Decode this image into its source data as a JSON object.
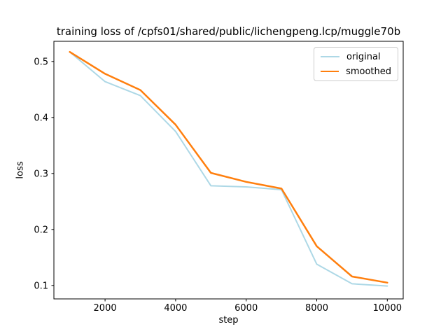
{
  "chart_data": {
    "type": "line",
    "title": "training loss of /cpfs01/shared/public/lichengpeng.lcp/muggle70b",
    "xlabel": "step",
    "ylabel": "loss",
    "x": [
      1000,
      2000,
      3000,
      4000,
      5000,
      6000,
      7000,
      8000,
      9000,
      10000
    ],
    "series": [
      {
        "name": "original",
        "color": "#add8e6",
        "line_width": 2,
        "values": [
          0.517,
          0.464,
          0.439,
          0.375,
          0.278,
          0.276,
          0.271,
          0.138,
          0.103,
          0.099
        ]
      },
      {
        "name": "smoothed",
        "color": "#ff7f0e",
        "line_width": 2.5,
        "values": [
          0.517,
          0.478,
          0.449,
          0.387,
          0.301,
          0.285,
          0.273,
          0.17,
          0.116,
          0.105
        ]
      }
    ],
    "xlim": [
      550,
      10450
    ],
    "ylim": [
      0.076,
      0.536
    ],
    "xticks": [
      2000,
      4000,
      6000,
      8000,
      10000
    ],
    "xtick_labels": [
      "2000",
      "4000",
      "6000",
      "8000",
      "10000"
    ],
    "yticks": [
      0.1,
      0.2,
      0.3,
      0.4,
      0.5
    ],
    "ytick_labels": [
      "0.1",
      "0.2",
      "0.3",
      "0.4",
      "0.5"
    ],
    "grid": false,
    "legend_position": "upper right",
    "axis_color": "#000000",
    "background_color": "#ffffff"
  }
}
